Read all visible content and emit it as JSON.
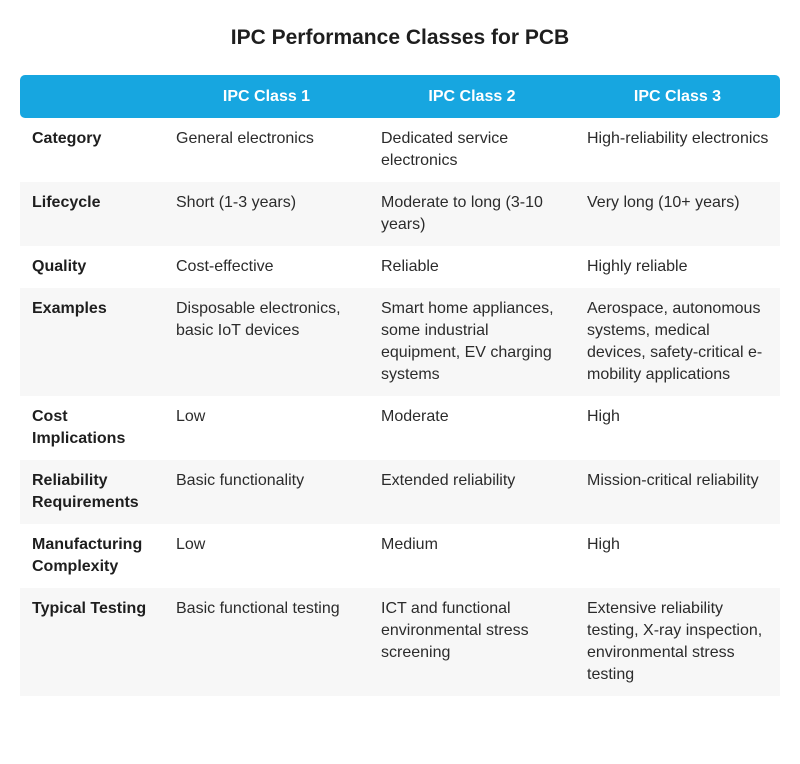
{
  "title": "IPC Performance Classes for PCB",
  "table": {
    "header": [
      "IPC Class 1",
      "IPC Class 2",
      "IPC Class 3"
    ],
    "rows": [
      [
        "Category",
        "General electronics",
        "Dedicated service electronics",
        "High-reliability electronics"
      ],
      [
        "Lifecycle",
        "Short (1-3 years)",
        "Moderate to long (3-10 years)",
        "Very long (10+ years)"
      ],
      [
        "Quality",
        "Cost-effective",
        "Reliable",
        "Highly reliable"
      ],
      [
        "Examples",
        "Disposable electronics, basic IoT devices",
        "Smart home appliances, some industrial equipment, EV charging systems",
        "Aerospace, autonomous systems, medical devices, safety-critical e-mobility applications"
      ],
      [
        "Cost Implications",
        "Low",
        "Moderate",
        "High"
      ],
      [
        "Reliability Requirements",
        "Basic functionality",
        "Extended reliability",
        "Mission-critical reliability"
      ],
      [
        "Manufacturing Complexity",
        "Low",
        "Medium",
        "High"
      ],
      [
        "Typical Testing",
        "Basic functional testing",
        "ICT and functional environmental stress screening",
        "Extensive reliability testing, X-ray inspection, environmental stress testing"
      ]
    ]
  }
}
